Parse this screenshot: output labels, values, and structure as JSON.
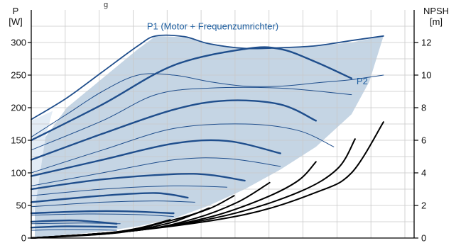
{
  "chart_data": {
    "type": "line",
    "top_note": "g",
    "left_axis": {
      "label_line1": "P",
      "label_line2": "[W]",
      "ylim": [
        0,
        350
      ],
      "ticks": [
        0,
        50,
        100,
        150,
        200,
        250,
        300
      ]
    },
    "right_axis": {
      "label_line1": "NPSH",
      "label_line2": "[m]",
      "ylim": [
        0,
        14
      ],
      "ticks": [
        0,
        2,
        4,
        6,
        8,
        10,
        12
      ]
    },
    "x_range": [
      0,
      10.5
    ],
    "grid": true,
    "shaded_region": {
      "color": "#c5d5e4",
      "upper": [
        [
          0.4,
          155
        ],
        [
          1.0,
          200
        ],
        [
          2.0,
          245
        ],
        [
          3.0,
          290
        ],
        [
          3.5,
          310
        ],
        [
          4.3,
          308
        ],
        [
          5.0,
          298
        ],
        [
          6.0,
          291
        ],
        [
          7.0,
          292
        ],
        [
          8.0,
          295
        ],
        [
          9.0,
          300
        ],
        [
          9.9,
          310
        ]
      ],
      "lower": [
        [
          9.9,
          310
        ],
        [
          9.5,
          240
        ],
        [
          9.0,
          190
        ],
        [
          8.0,
          140
        ],
        [
          7.0,
          105
        ],
        [
          6.0,
          75
        ],
        [
          5.0,
          50
        ],
        [
          4.0,
          30
        ],
        [
          3.0,
          18
        ],
        [
          2.0,
          10
        ],
        [
          1.0,
          5
        ],
        [
          0.1,
          0
        ],
        [
          0.1,
          45
        ],
        [
          0.4,
          155
        ]
      ]
    },
    "light_region": {
      "color": "#e3ecf5",
      "points": [
        [
          0,
          180
        ],
        [
          0.6,
          195
        ],
        [
          0.4,
          155
        ],
        [
          0.1,
          45
        ],
        [
          0,
          30
        ]
      ]
    },
    "annotations": [
      {
        "text": "P1 (Motor + Frequenzumrichter)",
        "x": 5.1,
        "y": 320,
        "color": "#1f5fa0"
      },
      {
        "text": "P2",
        "x": 9.3,
        "y": 236,
        "color": "#1f5fa0"
      }
    ],
    "series": [
      {
        "group": "p1_envelope",
        "color": "#1f4e8c",
        "width": 1.8,
        "points": [
          [
            0,
            182
          ],
          [
            1.0,
            215
          ],
          [
            2.0,
            255
          ],
          [
            3.0,
            295
          ],
          [
            3.5,
            310
          ],
          [
            4.3,
            309
          ],
          [
            5.0,
            298
          ],
          [
            6.0,
            291
          ],
          [
            7.0,
            292
          ],
          [
            8.0,
            295
          ],
          [
            9.0,
            303
          ],
          [
            9.9,
            310
          ]
        ]
      },
      {
        "group": "p1_curves",
        "color": "#1f4e8c",
        "width": 2.4,
        "points": [
          [
            0,
            150
          ],
          [
            2,
            205
          ],
          [
            4,
            265
          ],
          [
            6,
            290
          ],
          [
            7,
            290
          ],
          [
            8,
            270
          ],
          [
            9,
            245
          ]
        ]
      },
      {
        "group": "p1_curves",
        "color": "#1f4e8c",
        "width": 2.4,
        "points": [
          [
            0,
            120
          ],
          [
            2,
            160
          ],
          [
            4,
            197
          ],
          [
            5.5,
            211
          ],
          [
            7,
            205
          ],
          [
            8,
            180
          ]
        ]
      },
      {
        "group": "p1_curves",
        "color": "#1f4e8c",
        "width": 2.4,
        "points": [
          [
            0,
            95
          ],
          [
            2,
            120
          ],
          [
            4,
            145
          ],
          [
            5.5,
            149
          ],
          [
            7,
            130
          ]
        ]
      },
      {
        "group": "p1_curves",
        "color": "#1f4e8c",
        "width": 2.4,
        "points": [
          [
            0,
            75
          ],
          [
            2,
            90
          ],
          [
            4,
            98
          ],
          [
            5.0,
            97
          ],
          [
            6,
            88
          ]
        ]
      },
      {
        "group": "p1_curves",
        "color": "#1f4e8c",
        "width": 2.4,
        "points": [
          [
            0,
            55
          ],
          [
            2,
            65
          ],
          [
            3.5,
            69
          ],
          [
            4.4,
            62
          ]
        ]
      },
      {
        "group": "p1_curves",
        "color": "#1f4e8c",
        "width": 2.4,
        "points": [
          [
            0,
            38
          ],
          [
            1.5,
            41
          ],
          [
            2.7,
            41
          ],
          [
            4.0,
            38
          ]
        ]
      },
      {
        "group": "p1_curves",
        "color": "#1f4e8c",
        "width": 2.4,
        "points": [
          [
            0,
            25
          ],
          [
            1.2,
            27
          ],
          [
            2.4,
            22
          ]
        ]
      },
      {
        "group": "p1_curves",
        "color": "#1f4e8c",
        "width": 2.4,
        "points": [
          [
            0,
            16
          ],
          [
            1.0,
            18
          ],
          [
            2.4,
            17
          ]
        ]
      },
      {
        "group": "p2_envelope",
        "color": "#1f4e8c",
        "width": 1.0,
        "points": [
          [
            0,
            155
          ],
          [
            1.0,
            190
          ],
          [
            2.0,
            225
          ],
          [
            3.0,
            250
          ],
          [
            4.0,
            250
          ],
          [
            5.0,
            240
          ],
          [
            6.0,
            233
          ],
          [
            7.0,
            233
          ],
          [
            8.0,
            238
          ],
          [
            9.0,
            243
          ],
          [
            9.9,
            250
          ]
        ]
      },
      {
        "group": "p2_curves",
        "color": "#1f4e8c",
        "width": 1.0,
        "points": [
          [
            0,
            135
          ],
          [
            2,
            180
          ],
          [
            3.5,
            220
          ],
          [
            5,
            230
          ],
          [
            7,
            230
          ],
          [
            9,
            220
          ]
        ]
      },
      {
        "group": "p2_curves",
        "color": "#1f4e8c",
        "width": 1.0,
        "points": [
          [
            0,
            100
          ],
          [
            2,
            135
          ],
          [
            4,
            168
          ],
          [
            6,
            175
          ],
          [
            7.5,
            165
          ],
          [
            8.5,
            140
          ]
        ]
      },
      {
        "group": "p2_curves",
        "color": "#1f4e8c",
        "width": 1.0,
        "points": [
          [
            0,
            80
          ],
          [
            2,
            100
          ],
          [
            4,
            120
          ],
          [
            5.5,
            122
          ],
          [
            7,
            110
          ]
        ]
      },
      {
        "group": "p2_curves",
        "color": "#1f4e8c",
        "width": 1.0,
        "points": [
          [
            0,
            65
          ],
          [
            2,
            75
          ],
          [
            4,
            80
          ],
          [
            5.5,
            78
          ]
        ]
      },
      {
        "group": "p2_curves",
        "color": "#1f4e8c",
        "width": 1.0,
        "points": [
          [
            0,
            48
          ],
          [
            2,
            55
          ],
          [
            3.5,
            57
          ],
          [
            4.6,
            55
          ]
        ]
      },
      {
        "group": "p2_curves",
        "color": "#1f4e8c",
        "width": 1.0,
        "points": [
          [
            0,
            35
          ],
          [
            1.5,
            37
          ],
          [
            3,
            36
          ],
          [
            4,
            33
          ]
        ]
      },
      {
        "group": "p2_curves",
        "color": "#1f4e8c",
        "width": 1.0,
        "points": [
          [
            0,
            22
          ],
          [
            1.5,
            23
          ],
          [
            2.5,
            22
          ]
        ]
      },
      {
        "group": "p2_curves",
        "color": "#1f4e8c",
        "width": 1.0,
        "points": [
          [
            0,
            12
          ],
          [
            1.2,
            13
          ],
          [
            2.4,
            12
          ]
        ]
      },
      {
        "group": "npsh_curves",
        "color": "#000000",
        "width": 2.0,
        "points": [
          [
            0,
            0
          ],
          [
            3,
            12
          ],
          [
            6,
            36
          ],
          [
            8,
            70
          ],
          [
            9,
            100
          ],
          [
            9.9,
            178
          ]
        ]
      },
      {
        "group": "npsh_curves",
        "color": "#000000",
        "width": 2.0,
        "points": [
          [
            0,
            0
          ],
          [
            3,
            12
          ],
          [
            5.5,
            35
          ],
          [
            7.5,
            70
          ],
          [
            8.6,
            106
          ],
          [
            9.1,
            152
          ]
        ]
      },
      {
        "group": "npsh_curves",
        "color": "#000000",
        "width": 2.0,
        "points": [
          [
            0,
            0
          ],
          [
            3,
            12
          ],
          [
            5.0,
            32
          ],
          [
            6.5,
            60
          ],
          [
            7.5,
            88
          ],
          [
            8.0,
            117
          ]
        ]
      },
      {
        "group": "npsh_curves",
        "color": "#000000",
        "width": 2.0,
        "points": [
          [
            0,
            0
          ],
          [
            3,
            12
          ],
          [
            4.6,
            30
          ],
          [
            5.8,
            55
          ],
          [
            6.7,
            85
          ]
        ]
      },
      {
        "group": "npsh_curves",
        "color": "#000000",
        "width": 2.0,
        "points": [
          [
            0,
            0
          ],
          [
            2.5,
            10
          ],
          [
            4.0,
            28
          ],
          [
            5.0,
            45
          ],
          [
            5.7,
            65
          ]
        ]
      },
      {
        "group": "npsh_curves",
        "color": "#000000",
        "width": 2.0,
        "points": [
          [
            0,
            0
          ],
          [
            2.5,
            9
          ],
          [
            3.8,
            22
          ],
          [
            4.5,
            35
          ],
          [
            5.0,
            46
          ]
        ]
      },
      {
        "group": "npsh_curves",
        "color": "#000000",
        "width": 2.0,
        "points": [
          [
            0,
            0
          ],
          [
            2,
            7
          ],
          [
            3.0,
            15
          ],
          [
            3.9,
            28
          ]
        ]
      },
      {
        "group": "npsh_curves",
        "color": "#000000",
        "width": 2.0,
        "points": [
          [
            0,
            0
          ],
          [
            2,
            6
          ],
          [
            2.7,
            10
          ],
          [
            3.4,
            17
          ]
        ]
      },
      {
        "group": "npsh_curves",
        "color": "#000000",
        "width": 2.0,
        "points": [
          [
            0,
            0
          ],
          [
            1.5,
            4
          ],
          [
            2.2,
            7
          ],
          [
            2.8,
            12
          ]
        ]
      }
    ]
  }
}
